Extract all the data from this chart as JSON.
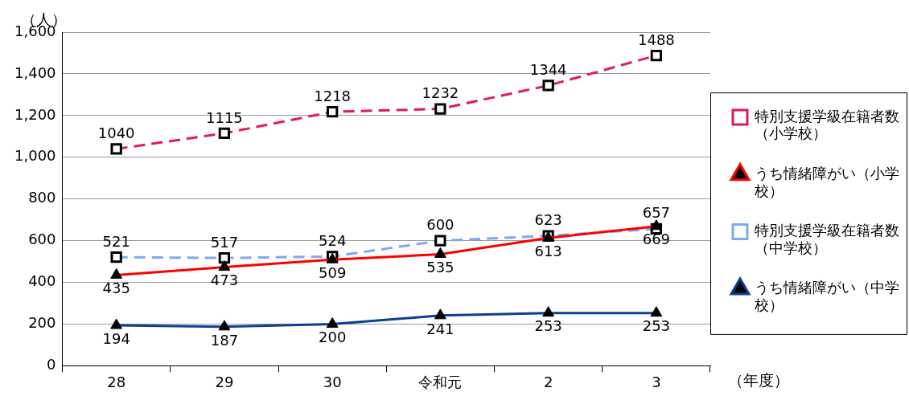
{
  "chart_data": {
    "type": "line",
    "ylabel": "（人）",
    "xlabel": "（年度）",
    "categories": [
      "28",
      "29",
      "30",
      "令和元",
      "2",
      "3"
    ],
    "ylim": [
      0,
      1600
    ],
    "yticks": [
      {
        "value": 0,
        "label": "0"
      },
      {
        "value": 200,
        "label": "200"
      },
      {
        "value": 400,
        "label": "400"
      },
      {
        "value": 600,
        "label": "600"
      },
      {
        "value": 800,
        "label": "800"
      },
      {
        "value": 1000,
        "label": "1,000"
      },
      {
        "value": 1200,
        "label": "1,200"
      },
      {
        "value": 1400,
        "label": "1,400"
      },
      {
        "value": 1600,
        "label": "1,600"
      }
    ],
    "grid": "y",
    "legend": "right",
    "data_labels": true,
    "series": [
      {
        "name": "特別支援学級在籍者数（小学校）",
        "color": "#e3195b",
        "marker": "square",
        "line_style": "dashed",
        "values": [
          1040,
          1115,
          1218,
          1232,
          1344,
          1488
        ]
      },
      {
        "name": "うち情緒障がい（小学校）",
        "color": "#ff0000",
        "marker": "triangle",
        "line_style": "solid",
        "values": [
          435,
          473,
          509,
          535,
          613,
          669
        ]
      },
      {
        "name": "特別支援学級在籍者数（中学校）",
        "color": "#7fa8f2",
        "marker": "square",
        "line_style": "dashed",
        "values": [
          521,
          517,
          524,
          600,
          623,
          657
        ]
      },
      {
        "name": "うち情緒障がい（中学校）",
        "color": "#0b3f91",
        "marker": "triangle",
        "line_style": "solid",
        "values": [
          194,
          187,
          200,
          241,
          253,
          253
        ]
      }
    ]
  }
}
